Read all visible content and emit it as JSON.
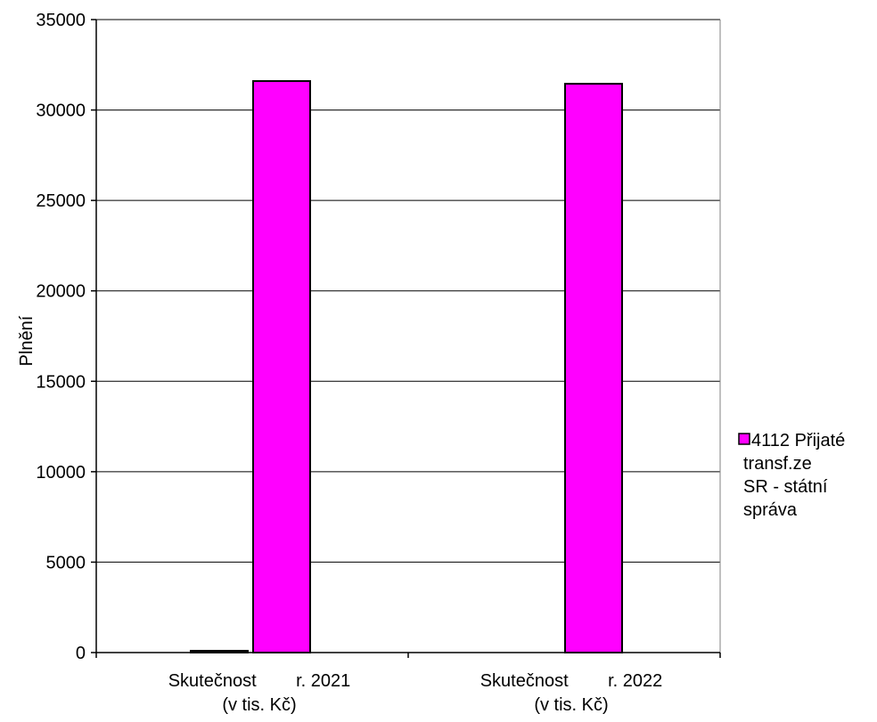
{
  "chart_data": {
    "type": "bar",
    "categories": [
      [
        "Skutečnost        r. 2021",
        "(v tis. Kč)"
      ],
      [
        "Skutečnost        r. 2022",
        "(v tis. Kč)"
      ]
    ],
    "series": [
      {
        "name": "",
        "color": "#000000",
        "values": [
          15,
          0
        ]
      },
      {
        "name": "4112 Přijaté transf.ze SR - státní správa",
        "color": "#ff00ff",
        "values": [
          31600,
          31450
        ]
      }
    ],
    "legend_lines": [
      "4112 Přijaté",
      "transf.ze",
      "SR - státní",
      "správa"
    ],
    "ylabel": "Plnění",
    "ylim": [
      0,
      35000
    ],
    "yticks": [
      0,
      5000,
      10000,
      15000,
      20000,
      25000,
      30000,
      35000
    ],
    "grid": true,
    "legend_position": "right"
  }
}
